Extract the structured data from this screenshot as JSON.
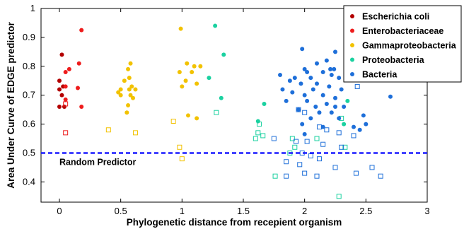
{
  "chart_data": {
    "type": "scatter",
    "xlabel": "Phylogenetic distance from recepient organism",
    "ylabel": "Area Under Curve of EDGE predictor",
    "xlim": [
      -0.15,
      3.0
    ],
    "ylim": [
      0.33,
      1.0
    ],
    "x_ticks": [
      "0",
      "0.5",
      "1",
      "1.5",
      "2",
      "2.5",
      "3"
    ],
    "y_ticks": [
      "0.4",
      "0.5",
      "0.6",
      "0.7",
      "0.8",
      "0.9",
      "1"
    ],
    "grid": false,
    "legend_position": "top-right",
    "reference_line": {
      "y": 0.5,
      "label": "Random Predictor",
      "color": "#1a1aff",
      "style": "dashed"
    },
    "marker_note": "filled circles and open squares per group",
    "series": [
      {
        "name": "Escherichia coli",
        "color": "#b30000",
        "filled": [
          [
            0.02,
            0.84
          ],
          [
            0.0,
            0.75
          ],
          [
            0.03,
            0.73
          ],
          [
            0.0,
            0.72
          ],
          [
            0.02,
            0.7
          ],
          [
            0.0,
            0.66
          ],
          [
            0.04,
            0.66
          ]
        ],
        "open": []
      },
      {
        "name": "Enterobacteriaceae",
        "color": "#ee1c1c",
        "filled": [
          [
            0.18,
            0.925
          ],
          [
            0.05,
            0.78
          ],
          [
            0.08,
            0.79
          ],
          [
            0.16,
            0.81
          ],
          [
            0.05,
            0.73
          ],
          [
            0.15,
            0.725
          ],
          [
            0.05,
            0.685
          ],
          [
            0.18,
            0.66
          ]
        ],
        "open": [
          [
            0.05,
            0.67
          ],
          [
            0.05,
            0.57
          ]
        ]
      },
      {
        "name": "Gammaproteobacteria",
        "color": "#f2c200",
        "filled": [
          [
            0.58,
            0.81
          ],
          [
            0.56,
            0.79
          ],
          [
            0.57,
            0.76
          ],
          [
            0.53,
            0.75
          ],
          [
            0.59,
            0.73
          ],
          [
            0.5,
            0.72
          ],
          [
            0.57,
            0.72
          ],
          [
            0.62,
            0.72
          ],
          [
            0.48,
            0.71
          ],
          [
            0.5,
            0.7
          ],
          [
            0.58,
            0.7
          ],
          [
            0.6,
            0.69
          ],
          [
            0.56,
            0.665
          ],
          [
            0.55,
            0.64
          ],
          [
            0.99,
            0.93
          ],
          [
            1.04,
            0.81
          ],
          [
            1.1,
            0.8
          ],
          [
            1.15,
            0.8
          ],
          [
            0.98,
            0.78
          ],
          [
            1.08,
            0.78
          ],
          [
            1.03,
            0.75
          ],
          [
            1.12,
            0.74
          ],
          [
            1.0,
            0.73
          ],
          [
            1.05,
            0.63
          ],
          [
            1.12,
            0.62
          ]
        ],
        "open": [
          [
            0.4,
            0.58
          ],
          [
            0.62,
            0.57
          ],
          [
            0.93,
            0.61
          ],
          [
            0.98,
            0.52
          ],
          [
            1.0,
            0.48
          ]
        ]
      },
      {
        "name": "Proteobacteria",
        "color": "#1ad1a0",
        "filled": [
          [
            1.27,
            0.94
          ],
          [
            1.34,
            0.84
          ],
          [
            1.22,
            0.76
          ],
          [
            1.32,
            0.69
          ],
          [
            1.67,
            0.67
          ],
          [
            1.62,
            0.61
          ],
          [
            2.35,
            0.68
          ],
          [
            2.32,
            0.6
          ]
        ],
        "open": [
          [
            1.28,
            0.64
          ],
          [
            1.63,
            0.6
          ],
          [
            1.62,
            0.57
          ],
          [
            1.66,
            0.56
          ],
          [
            1.6,
            0.55
          ],
          [
            1.9,
            0.55
          ],
          [
            1.92,
            0.52
          ],
          [
            1.88,
            0.5
          ],
          [
            2.1,
            0.55
          ],
          [
            2.33,
            0.52
          ],
          [
            1.76,
            0.42
          ],
          [
            2.28,
            0.35
          ],
          [
            2.3,
            0.62
          ]
        ],
        "_": ""
      },
      {
        "name": "Bacteria",
        "color": "#1e6fd9",
        "filled": [
          [
            1.98,
            0.86
          ],
          [
            2.25,
            0.85
          ],
          [
            2.18,
            0.82
          ],
          [
            2.1,
            0.81
          ],
          [
            2.0,
            0.79
          ],
          [
            2.21,
            0.79
          ],
          [
            2.24,
            0.79
          ],
          [
            2.02,
            0.78
          ],
          [
            2.15,
            0.78
          ],
          [
            2.22,
            0.77
          ],
          [
            1.8,
            0.77
          ],
          [
            1.92,
            0.76
          ],
          [
            2.05,
            0.76
          ],
          [
            2.28,
            0.76
          ],
          [
            1.88,
            0.75
          ],
          [
            1.97,
            0.74
          ],
          [
            2.1,
            0.74
          ],
          [
            2.2,
            0.73
          ],
          [
            1.82,
            0.72
          ],
          [
            2.07,
            0.72
          ],
          [
            2.3,
            0.72
          ],
          [
            1.9,
            0.71
          ],
          [
            2.0,
            0.7
          ],
          [
            2.15,
            0.7
          ],
          [
            2.25,
            0.69
          ],
          [
            1.85,
            0.68
          ],
          [
            2.02,
            0.68
          ],
          [
            2.18,
            0.67
          ],
          [
            2.09,
            0.66
          ],
          [
            2.25,
            0.66
          ],
          [
            2.32,
            0.66
          ],
          [
            1.95,
            0.65
          ],
          [
            2.12,
            0.64
          ],
          [
            2.22,
            0.64
          ],
          [
            2.05,
            0.62
          ],
          [
            2.28,
            0.62
          ],
          [
            2.48,
            0.63
          ],
          [
            1.98,
            0.6
          ],
          [
            2.15,
            0.59
          ],
          [
            2.4,
            0.59
          ],
          [
            2.45,
            0.58
          ],
          [
            2.0,
            0.565
          ],
          [
            2.7,
            0.695
          ],
          [
            2.82,
            0.76
          ],
          [
            2.5,
            0.6
          ]
        ],
        "open": [
          [
            2.43,
            0.73
          ],
          [
            1.95,
            0.65
          ],
          [
            2.0,
            0.64
          ],
          [
            2.12,
            0.59
          ],
          [
            2.18,
            0.58
          ],
          [
            2.28,
            0.57
          ],
          [
            2.4,
            0.56
          ],
          [
            1.75,
            0.55
          ],
          [
            1.93,
            0.54
          ],
          [
            2.02,
            0.54
          ],
          [
            2.15,
            0.53
          ],
          [
            2.3,
            0.52
          ],
          [
            1.98,
            0.5
          ],
          [
            2.05,
            0.49
          ],
          [
            2.12,
            0.48
          ],
          [
            1.85,
            0.47
          ],
          [
            1.96,
            0.46
          ],
          [
            2.25,
            0.45
          ],
          [
            2.55,
            0.45
          ],
          [
            2.42,
            0.43
          ],
          [
            2.62,
            0.42
          ],
          [
            1.85,
            0.42
          ],
          [
            2.1,
            0.42
          ],
          [
            2.0,
            0.43
          ]
        ]
      }
    ]
  }
}
